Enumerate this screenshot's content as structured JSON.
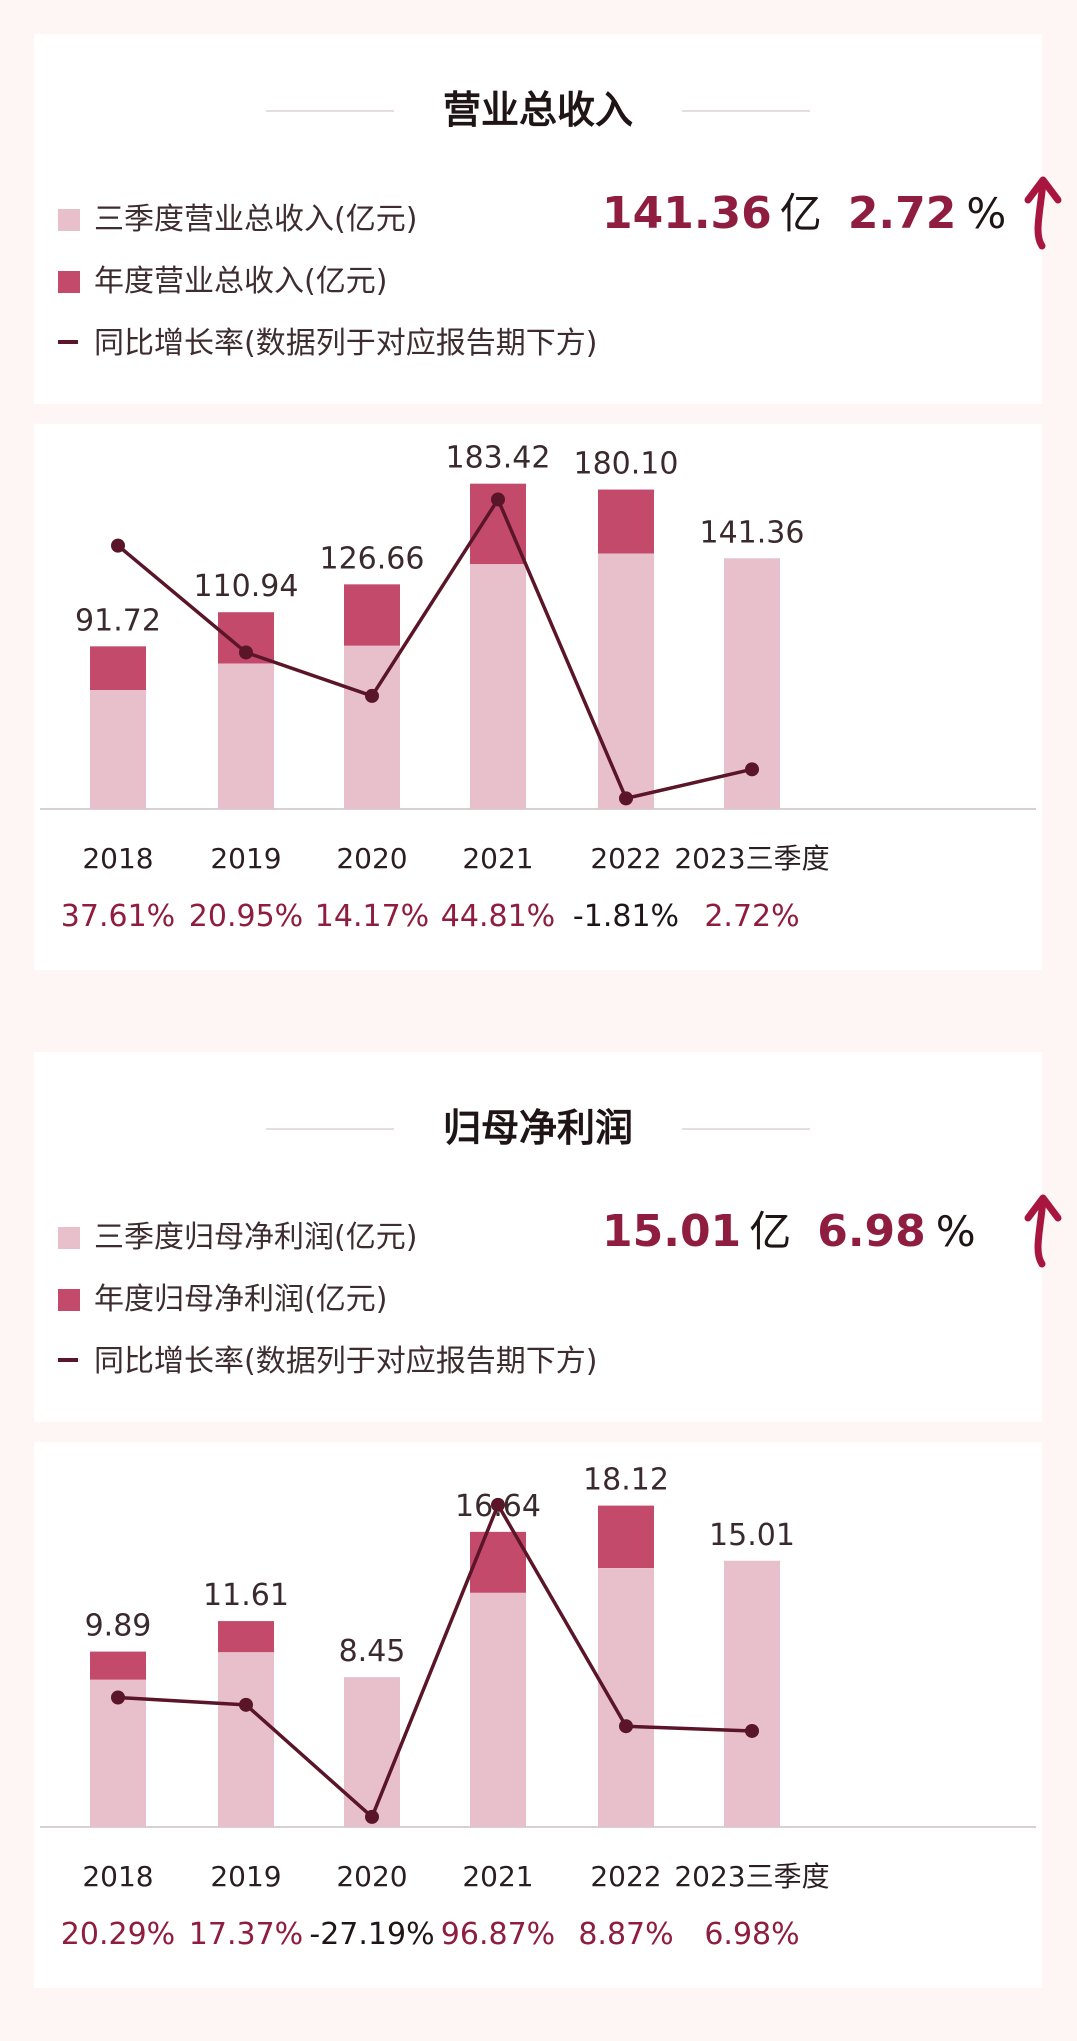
{
  "colors": {
    "light_bar": "#e8c0cc",
    "dark_bar": "#c44a6c",
    "line": "#5a1529",
    "accent": "#8f1d3f",
    "axis": "#d8d0d2"
  },
  "revenue": {
    "title": "营业总收入",
    "legend": {
      "q3": "三季度营业总收入(亿元)",
      "annual": "年度营业总收入(亿元)",
      "growth": "同比增长率(数据列于对应报告期下方)"
    },
    "kpi": {
      "value": "141.36",
      "unit": "亿",
      "pct": "2.72",
      "pct_unit": "%",
      "icon": "up-arrow-icon"
    }
  },
  "net_profit": {
    "title": "归母净利润",
    "legend": {
      "q3": "三季度归母净利润(亿元)",
      "annual": "年度归母净利润(亿元)",
      "growth": "同比增长率(数据列于对应报告期下方)"
    },
    "kpi": {
      "value": "15.01",
      "unit": "亿",
      "pct": "6.98",
      "pct_unit": "%",
      "icon": "up-arrow-icon"
    }
  },
  "chart_data": [
    {
      "type": "bar",
      "categories": [
        "2018",
        "2019",
        "2020",
        "2021",
        "2022",
        "2023三季度"
      ],
      "series": [
        {
          "name": "三季度营业总收入(亿元)",
          "values": [
            67,
            82,
            92,
            138,
            144,
            141.36
          ]
        },
        {
          "name": "年度营业总收入(亿元)",
          "values": [
            91.72,
            110.94,
            126.66,
            183.42,
            180.1,
            null
          ]
        },
        {
          "name": "同比增长率(数据列于对应报告期下方)",
          "values": [
            37.61,
            20.95,
            14.17,
            44.81,
            -1.81,
            2.72
          ]
        }
      ],
      "bar_labels": [
        "91.72",
        "110.94",
        "126.66",
        "183.42",
        "180.10",
        "141.36"
      ],
      "growth_labels": [
        "37.61%",
        "20.95%",
        "14.17%",
        "44.81%",
        "-1.81%",
        "2.72%"
      ],
      "bar_max": 190,
      "rate_range": [
        -3,
        48
      ]
    },
    {
      "type": "bar",
      "categories": [
        "2018",
        "2019",
        "2020",
        "2021",
        "2022",
        "2023三季度"
      ],
      "series": [
        {
          "name": "三季度归母净利润(亿元)",
          "values": [
            8.3,
            9.85,
            8.45,
            13.2,
            14.6,
            15.01
          ]
        },
        {
          "name": "年度归母净利润(亿元)",
          "values": [
            9.89,
            11.61,
            8.45,
            16.64,
            18.12,
            null
          ]
        },
        {
          "name": "同比增长率(数据列于对应报告期下方)",
          "values": [
            20.29,
            17.37,
            -27.19,
            96.87,
            8.87,
            6.98
          ]
        }
      ],
      "bar_labels": [
        "9.89",
        "11.61",
        "8.45",
        "16.64",
        "18.12",
        "15.01"
      ],
      "growth_labels": [
        "20.29%",
        "17.37%",
        "-27.19%",
        "96.87%",
        "8.87%",
        "6.98%"
      ],
      "bar_max": 19,
      "rate_range": [
        -30,
        100
      ]
    }
  ]
}
